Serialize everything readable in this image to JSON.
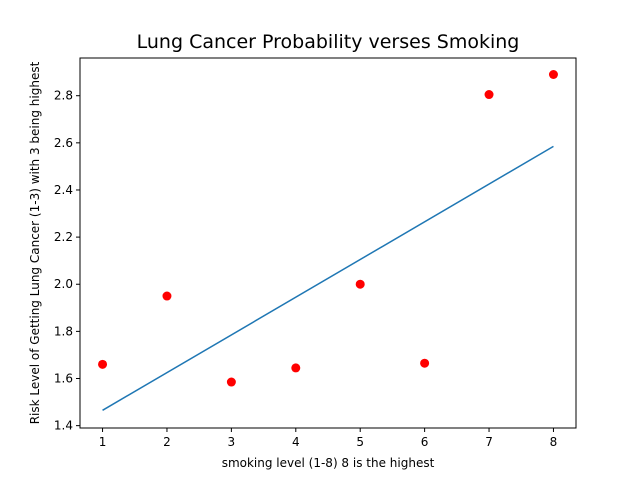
{
  "chart_data": {
    "type": "scatter",
    "title": "Lung Cancer Probability verses Smoking",
    "xlabel": "smoking level (1-8) 8 is the highest",
    "ylabel": "Risk Level of Getting Lung Cancer (1-3) with 3 being highest",
    "xlim": [
      0.65,
      8.35
    ],
    "ylim": [
      1.39,
      2.96
    ],
    "x_ticks": [
      1,
      2,
      3,
      4,
      5,
      6,
      7,
      8
    ],
    "y_ticks": [
      1.4,
      1.6,
      1.8,
      2.0,
      2.2,
      2.4,
      2.6,
      2.8
    ],
    "grid": false,
    "series": [
      {
        "kind": "scatter",
        "color": "#ff0000",
        "x": [
          1,
          2,
          3,
          4,
          5,
          6,
          7,
          8
        ],
        "y": [
          1.66,
          1.95,
          1.585,
          1.645,
          2.0,
          1.665,
          2.805,
          2.89
        ]
      },
      {
        "kind": "line",
        "color": "#1f77b4",
        "x": [
          1,
          8
        ],
        "y": [
          1.465,
          2.585
        ]
      }
    ]
  }
}
